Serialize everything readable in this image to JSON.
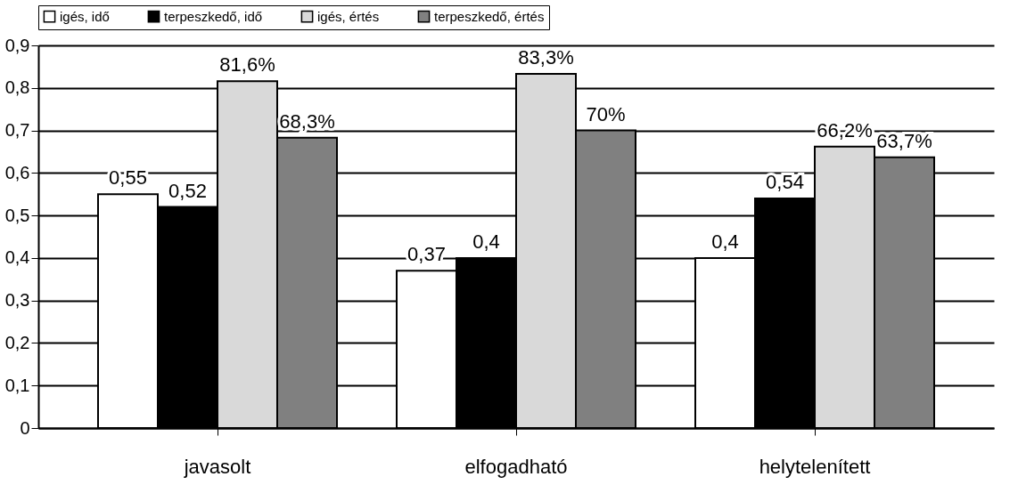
{
  "chart_data": {
    "type": "bar",
    "categories": [
      "javasolt",
      "elfogadható",
      "helytelenített"
    ],
    "series": [
      {
        "name": "igés, idő",
        "color": "#ffffff",
        "values": [
          0.55,
          0.37,
          0.4
        ],
        "value_labels": [
          "0,55",
          "0,37",
          "0,4"
        ]
      },
      {
        "name": "terpeszkedő, idő",
        "color": "#000000",
        "values": [
          0.52,
          0.4,
          0.54
        ],
        "value_labels": [
          "0,52",
          "0,4",
          "0,54"
        ]
      },
      {
        "name": "igés, értés",
        "color": "#d9d9d9",
        "values": [
          0.816,
          0.833,
          0.662
        ],
        "value_labels": [
          "81,6%",
          "83,3%",
          "66,2%"
        ]
      },
      {
        "name": "terpeszkedő, értés",
        "color": "#808080",
        "values": [
          0.683,
          0.7,
          0.637
        ],
        "value_labels": [
          "68,3%",
          "70%",
          "63,7%"
        ]
      }
    ],
    "ylim": [
      0,
      0.9
    ],
    "yticks": [
      0,
      {
        "value": 0.1,
        "label": "0,1"
      },
      {
        "value": 0.2,
        "label": "0,2"
      },
      {
        "value": 0.3,
        "label": "0,3"
      },
      {
        "value": 0.4,
        "label": "0,4"
      },
      {
        "value": 0.5,
        "label": "0,5"
      },
      {
        "value": 0.6,
        "label": "0,6"
      },
      {
        "value": 0.7,
        "label": "0,7"
      },
      {
        "value": 0.8,
        "label": "0,8"
      },
      {
        "value": 0.9,
        "label": "0,9"
      }
    ],
    "grid": "y",
    "legend": "top"
  }
}
